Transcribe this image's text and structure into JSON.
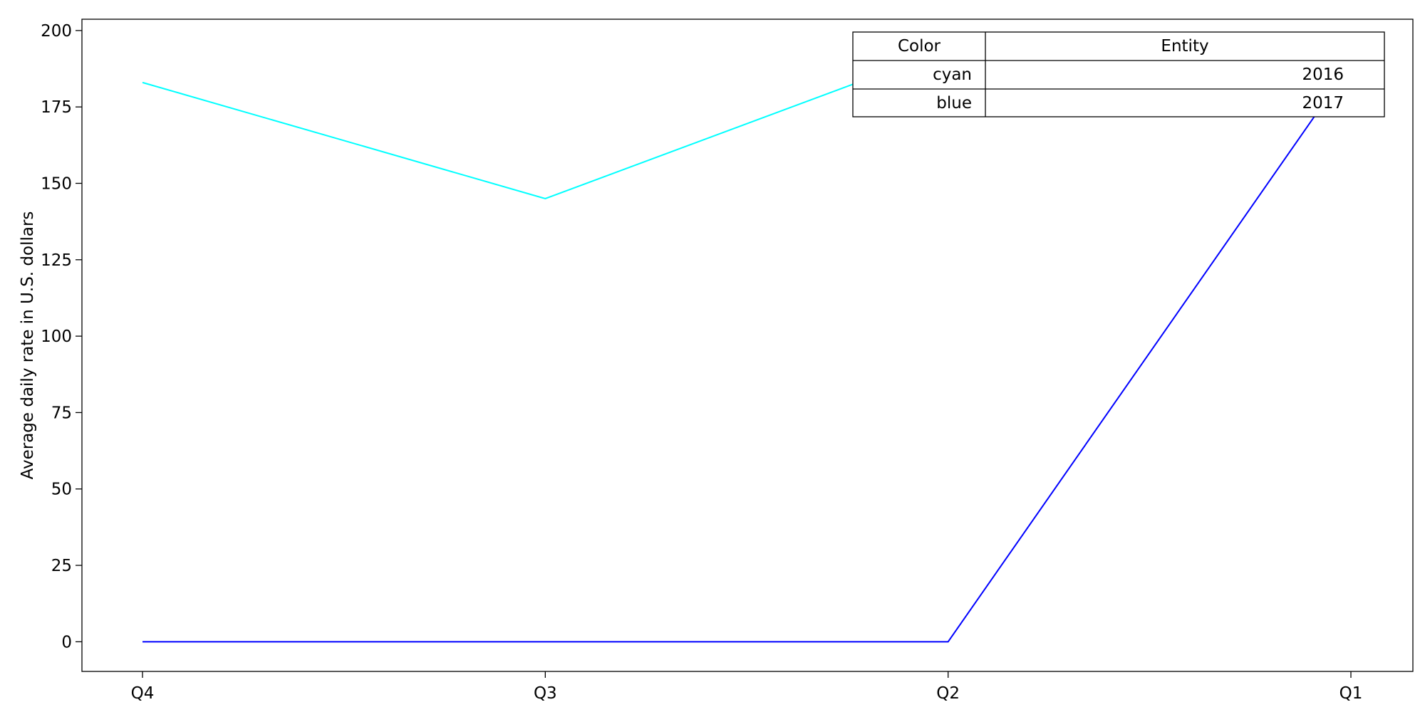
{
  "chart_data": {
    "type": "line",
    "title": "",
    "xlabel": "",
    "ylabel": "Average daily rate in U.S. dollars",
    "categories": [
      "Q4",
      "Q3",
      "Q2",
      "Q1"
    ],
    "yticks": [
      0,
      25,
      50,
      75,
      100,
      125,
      150,
      175,
      200
    ],
    "ylim": [
      -9.7,
      203.7
    ],
    "grid": false,
    "series": [
      {
        "name": "2016",
        "color": "#00ffff",
        "values": [
          183,
          145,
          194,
          184
        ]
      },
      {
        "name": "2017",
        "color": "#0000ff",
        "values": [
          0,
          0,
          0,
          189
        ]
      }
    ],
    "legend_table": {
      "placement": "top-right",
      "headers": [
        "Color",
        "Entity"
      ],
      "rows": [
        {
          "color": "cyan",
          "entity": "2016"
        },
        {
          "color": "blue",
          "entity": "2017"
        }
      ]
    }
  }
}
